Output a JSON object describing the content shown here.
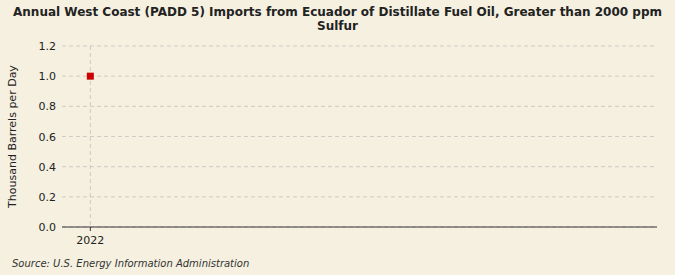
{
  "chart_data": {
    "type": "scatter",
    "title": "Annual West Coast (PADD 5) Imports from Ecuador of Distillate Fuel Oil, Greater than 2000 ppm\nSulfur",
    "y_label": "Thousand Barrels per Day",
    "annotations": [
      "Source: U.S. Energy Information Administration"
    ],
    "x": [
      2022
    ],
    "values": [
      1.0
    ],
    "color": "#cc0000",
    "marker": "square",
    "background": "#f5f0e0",
    "xlim": [
      2021.7,
      2028.0
    ],
    "ylim": [
      0.0,
      1.2
    ],
    "xticks": [
      2022
    ],
    "yticks": [
      {
        "value": 0.0,
        "label": "0.0"
      },
      0.2,
      0.4,
      0.6,
      0.8,
      {
        "value": 1.0,
        "label": "1.0"
      },
      1.2
    ],
    "grid": true
  }
}
